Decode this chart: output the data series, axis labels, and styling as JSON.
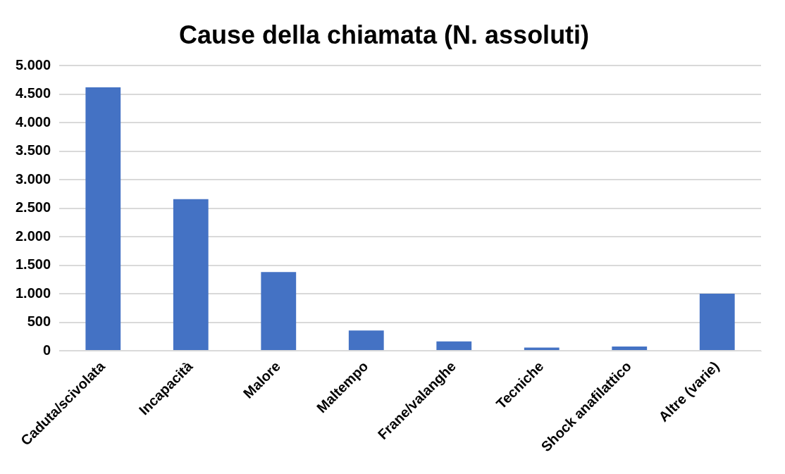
{
  "chart_data": {
    "type": "bar",
    "title": "Cause della chiamata (N. assoluti)",
    "categories": [
      "Caduta/scivolata",
      "Incapacità",
      "Malore",
      "Maltempo",
      "Frane/valanghe",
      "Tecniche",
      "Shock anafilattico",
      "Altre (varie)"
    ],
    "values": [
      4620,
      2660,
      1380,
      355,
      165,
      55,
      75,
      1000
    ],
    "color": "#4472c4",
    "ylim": [
      0,
      5000
    ],
    "yticks": [
      0,
      500,
      {
        "value": 1000,
        "label": "1.000"
      },
      {
        "value": 1500,
        "label": "1.500"
      },
      {
        "value": 2000,
        "label": "2.000"
      },
      {
        "value": 2500,
        "label": "2.500"
      },
      {
        "value": 3000,
        "label": "3.000"
      },
      {
        "value": 3500,
        "label": "3.500"
      },
      {
        "value": 4000,
        "label": "4.000"
      },
      {
        "value": 4500,
        "label": "4.500"
      },
      {
        "value": 5000,
        "label": "5.000"
      }
    ],
    "grid": "y",
    "legend": false
  }
}
